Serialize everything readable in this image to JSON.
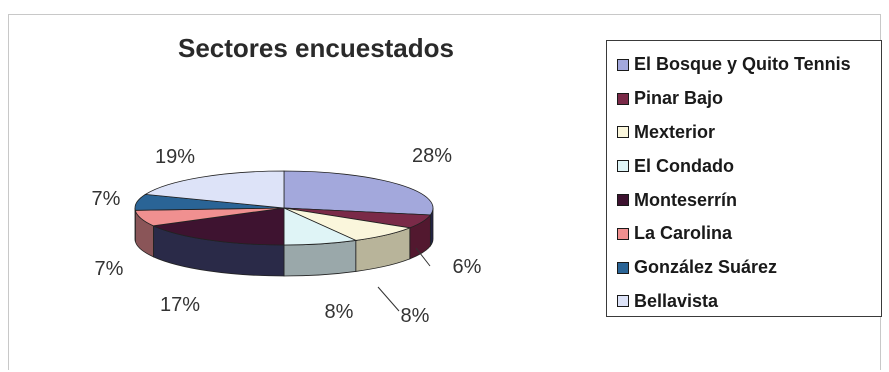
{
  "chart_data": {
    "type": "pie",
    "title": "Sectores encuestados",
    "categories": [
      "El Bosque y Quito Tennis",
      "Pinar Bajo",
      "Mexterior",
      "El Condado",
      "Monteserrín",
      "La Carolina",
      "González Suárez",
      "Bellavista"
    ],
    "values": [
      28,
      6,
      8,
      8,
      17,
      7,
      7,
      19
    ],
    "labels": [
      "28%",
      "6%",
      "8%",
      "8%",
      "17%",
      "7%",
      "7%",
      "19%"
    ],
    "colors": [
      "#a3a8dc",
      "#7a2a48",
      "#faf6dc",
      "#dff4f6",
      "#3e1330",
      "#f09090",
      "#2a6496",
      "#dde3f8"
    ],
    "side_colors": [
      "#232345",
      "#52182f",
      "#b8b49a",
      "#9aa8aa",
      "#2a2a48",
      "#8a5558",
      "#1f3d66",
      "#8a8aa0"
    ],
    "legend_position": "right",
    "style": "3d-pie"
  }
}
